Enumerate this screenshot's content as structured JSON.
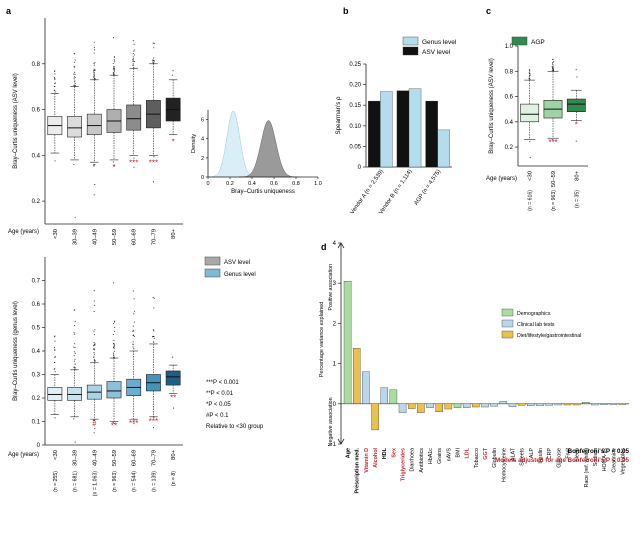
{
  "panel_labels": {
    "a": "a",
    "b": "b",
    "c": "c",
    "d": "d"
  },
  "colors": {
    "asv_grad": [
      "#ececec",
      "#dcdcdc",
      "#c8c8c8",
      "#afafaf",
      "#8c8c8c",
      "#5e5e5e",
      "#222222"
    ],
    "genus_grad": [
      "#dff0f7",
      "#c7e3ef",
      "#abd3e6",
      "#8cc1dc",
      "#6aadd0",
      "#4393bd",
      "#1f5f86"
    ],
    "agp_grad": [
      "#dff1e1",
      "#9ed3a6",
      "#2f8a4e"
    ],
    "genus_level": "#b4dced",
    "asv_black": "#111111",
    "density_genus": "#d9eef6",
    "density_asv": "#9a9a9a",
    "demographics": "#a8dca0",
    "clinical": "#b9d7e8",
    "diet": "#e9c14b",
    "sig_red": "#c0262c",
    "star_red": "#c0262c"
  },
  "legend_a_bottom": {
    "asv": "ASV level",
    "genus": "Genus level"
  },
  "sig_legend": {
    "l1": "***P < 0.001",
    "l2": "**P < 0.01",
    "l3": "*P < 0.05",
    "l4": "#P < 0.1",
    "l5": "Relative to <30 group"
  },
  "d_legend": {
    "demographics": "Demographics",
    "clinical": "Clinical lab tests",
    "diet": "Diet/lifestyle/gastrointestinal"
  },
  "d_bonf": "Bonferroni's P < 0.05",
  "d_bonf_age": "Models adjusted for age Bonferroni's P < 0.05",
  "d_axis_pos": "Positive association",
  "d_axis_neg": "Negative association",
  "chart_data": [
    {
      "id": "a_top",
      "type": "box",
      "title": "",
      "ylabel": "Bray–Curtis uniqueness (ASV level)",
      "xlabel": "Age (years)",
      "ylim": [
        0.1,
        1.0
      ],
      "yticks": [
        "0.2",
        "0.4",
        "0.6",
        "0.8"
      ],
      "categories": [
        "<30",
        "30–39",
        "40–49",
        "50–59",
        "60–69",
        "70–79",
        "80+"
      ],
      "boxes": [
        {
          "q1": 0.49,
          "median": 0.53,
          "q3": 0.57,
          "wlo": 0.41,
          "whi": 0.67
        },
        {
          "q1": 0.48,
          "median": 0.52,
          "q3": 0.57,
          "wlo": 0.38,
          "whi": 0.7
        },
        {
          "q1": 0.49,
          "median": 0.53,
          "q3": 0.58,
          "wlo": 0.37,
          "whi": 0.73
        },
        {
          "q1": 0.5,
          "median": 0.55,
          "q3": 0.6,
          "wlo": 0.38,
          "whi": 0.75
        },
        {
          "q1": 0.51,
          "median": 0.56,
          "q3": 0.62,
          "wlo": 0.4,
          "whi": 0.78
        },
        {
          "q1": 0.52,
          "median": 0.58,
          "q3": 0.64,
          "wlo": 0.4,
          "whi": 0.8
        },
        {
          "q1": 0.55,
          "median": 0.6,
          "q3": 0.65,
          "wlo": 0.49,
          "whi": 0.73
        }
      ],
      "sig": [
        "",
        "",
        "",
        "*",
        "***",
        "***",
        "*"
      ]
    },
    {
      "id": "a_density",
      "type": "area",
      "ylabel": "Density",
      "xlabel": "Bray–Curtis uniqueness",
      "xlim": [
        0.0,
        1.0
      ],
      "ylim": [
        0,
        7
      ],
      "xticks": [
        "0",
        "0.2",
        "0.4",
        "0.6",
        "0.8",
        "1.0"
      ],
      "yticks": [
        "0",
        "2",
        "4",
        "6"
      ],
      "series": [
        {
          "name": "Genus level",
          "mean": 0.23,
          "sd": 0.058,
          "peak": 6.9
        },
        {
          "name": "ASV level",
          "mean": 0.55,
          "sd": 0.068,
          "peak": 5.9
        }
      ]
    },
    {
      "id": "a_bottom",
      "type": "box",
      "ylabel": "Bray–Curtis uniqueness (genus level)",
      "xlabel": "Age (years)",
      "ylim": [
        0.0,
        0.8
      ],
      "yticks": [
        "0",
        "0.1",
        "0.2",
        "0.3",
        "0.4",
        "0.5",
        "0.6",
        "0.7"
      ],
      "categories": [
        "<30",
        "30–39",
        "40–49",
        "50–59",
        "60–69",
        "70–79",
        "80+"
      ],
      "n_labels": [
        "(n = 255)",
        "(n = 681)",
        "(n = 1,063)",
        "(n = 963)",
        "(n = 544)",
        "(n = 139)",
        "(n = 8)"
      ],
      "boxes": [
        {
          "q1": 0.19,
          "median": 0.215,
          "q3": 0.245,
          "wlo": 0.13,
          "whi": 0.3
        },
        {
          "q1": 0.19,
          "median": 0.215,
          "q3": 0.245,
          "wlo": 0.12,
          "whi": 0.32
        },
        {
          "q1": 0.195,
          "median": 0.225,
          "q3": 0.255,
          "wlo": 0.11,
          "whi": 0.35
        },
        {
          "q1": 0.2,
          "median": 0.23,
          "q3": 0.27,
          "wlo": 0.1,
          "whi": 0.37
        },
        {
          "q1": 0.21,
          "median": 0.245,
          "q3": 0.28,
          "wlo": 0.11,
          "whi": 0.4
        },
        {
          "q1": 0.23,
          "median": 0.265,
          "q3": 0.3,
          "wlo": 0.12,
          "whi": 0.43
        },
        {
          "q1": 0.255,
          "median": 0.29,
          "q3": 0.315,
          "wlo": 0.22,
          "whi": 0.34
        }
      ],
      "sig": [
        "",
        "",
        "#",
        "**",
        "***",
        "***",
        "**"
      ]
    },
    {
      "id": "b",
      "type": "bar",
      "ylabel": "Spearman's ρ",
      "ylim": [
        0.0,
        0.25
      ],
      "yticks": [
        "0",
        "0.05",
        "0.10",
        "0.15",
        "0.20",
        "0.25"
      ],
      "categories": [
        "Vendor A (n = 2,539)",
        "Vendor B (n = 1,114)",
        "AGP (n = 4,575)"
      ],
      "series": [
        {
          "name": "ASV level",
          "values": [
            0.16,
            0.185,
            0.16
          ]
        },
        {
          "name": "Genus level",
          "values": [
            0.183,
            0.19,
            0.09
          ]
        }
      ],
      "legend": [
        "Genus level",
        "ASV level"
      ]
    },
    {
      "id": "c",
      "type": "box",
      "legend": "AGP",
      "ylabel": "Bray–Curtis uniqueness (ASV level)",
      "xlabel": "Age (years)",
      "ylim": [
        0.05,
        1.0
      ],
      "yticks": [
        "0.2",
        "0.4",
        "0.6",
        "0.8",
        "1.0"
      ],
      "categories": [
        "<30",
        "50–59",
        "80+"
      ],
      "n_labels": [
        "(n = 616)",
        "(n = 963)",
        "(n = 35)"
      ],
      "boxes": [
        {
          "q1": 0.4,
          "median": 0.46,
          "q3": 0.54,
          "wlo": 0.26,
          "whi": 0.73
        },
        {
          "q1": 0.43,
          "median": 0.5,
          "q3": 0.57,
          "wlo": 0.27,
          "whi": 0.8
        },
        {
          "q1": 0.48,
          "median": 0.54,
          "q3": 0.58,
          "wlo": 0.41,
          "whi": 0.65
        }
      ],
      "sig": [
        "",
        "***",
        "*"
      ]
    },
    {
      "id": "d",
      "type": "bar",
      "ylabel": "Percentage variance explained",
      "ylim": [
        -1.0,
        4.0
      ],
      "yticks": [
        "−1",
        "0",
        "1",
        "2",
        "3",
        "4"
      ],
      "categories": [
        "Age",
        "Prescription med.",
        "Vitamin D",
        "Alcohol",
        "HDL",
        "Sex",
        "Triglycerides",
        "Diarrhoea",
        "Antibiotics",
        "HbA1c",
        "Grains",
        "nAVS",
        "BMI",
        "LDL",
        "Tobacco",
        "GGT",
        "Globulin",
        "Homocysteine",
        "ALAT",
        "Sweets",
        "ALP",
        "Insulin",
        "CRP",
        "Glucose",
        "Fruit",
        "Sleep",
        "Race (ref. white)",
        "Sodium",
        "HOMA-IR",
        "Creatinine",
        "Vegetables"
      ],
      "values": [
        3.05,
        1.38,
        0.8,
        -0.65,
        0.4,
        0.35,
        -0.22,
        -0.12,
        -0.22,
        -0.1,
        -0.2,
        -0.13,
        -0.1,
        -0.1,
        -0.08,
        -0.08,
        -0.06,
        0.06,
        -0.07,
        -0.04,
        -0.05,
        -0.05,
        -0.04,
        -0.03,
        -0.03,
        -0.03,
        0.04,
        -0.03,
        -0.02,
        -0.02,
        -0.02
      ],
      "groups": [
        "demographics",
        "diet",
        "clinical",
        "diet",
        "clinical",
        "demographics",
        "clinical",
        "diet",
        "diet",
        "clinical",
        "diet",
        "diet",
        "demographics",
        "clinical",
        "diet",
        "clinical",
        "clinical",
        "clinical",
        "clinical",
        "diet",
        "clinical",
        "clinical",
        "clinical",
        "clinical",
        "diet",
        "diet",
        "demographics",
        "clinical",
        "clinical",
        "clinical",
        "diet"
      ],
      "label_style": [
        "bonf",
        "bonf",
        "age",
        "age",
        "bonf",
        "age",
        "age",
        "",
        "",
        "",
        "",
        "",
        "",
        "age",
        "",
        "age",
        "",
        "",
        "",
        "",
        "",
        "",
        "",
        "",
        "",
        "",
        "",
        "",
        "",
        "",
        ""
      ]
    }
  ]
}
